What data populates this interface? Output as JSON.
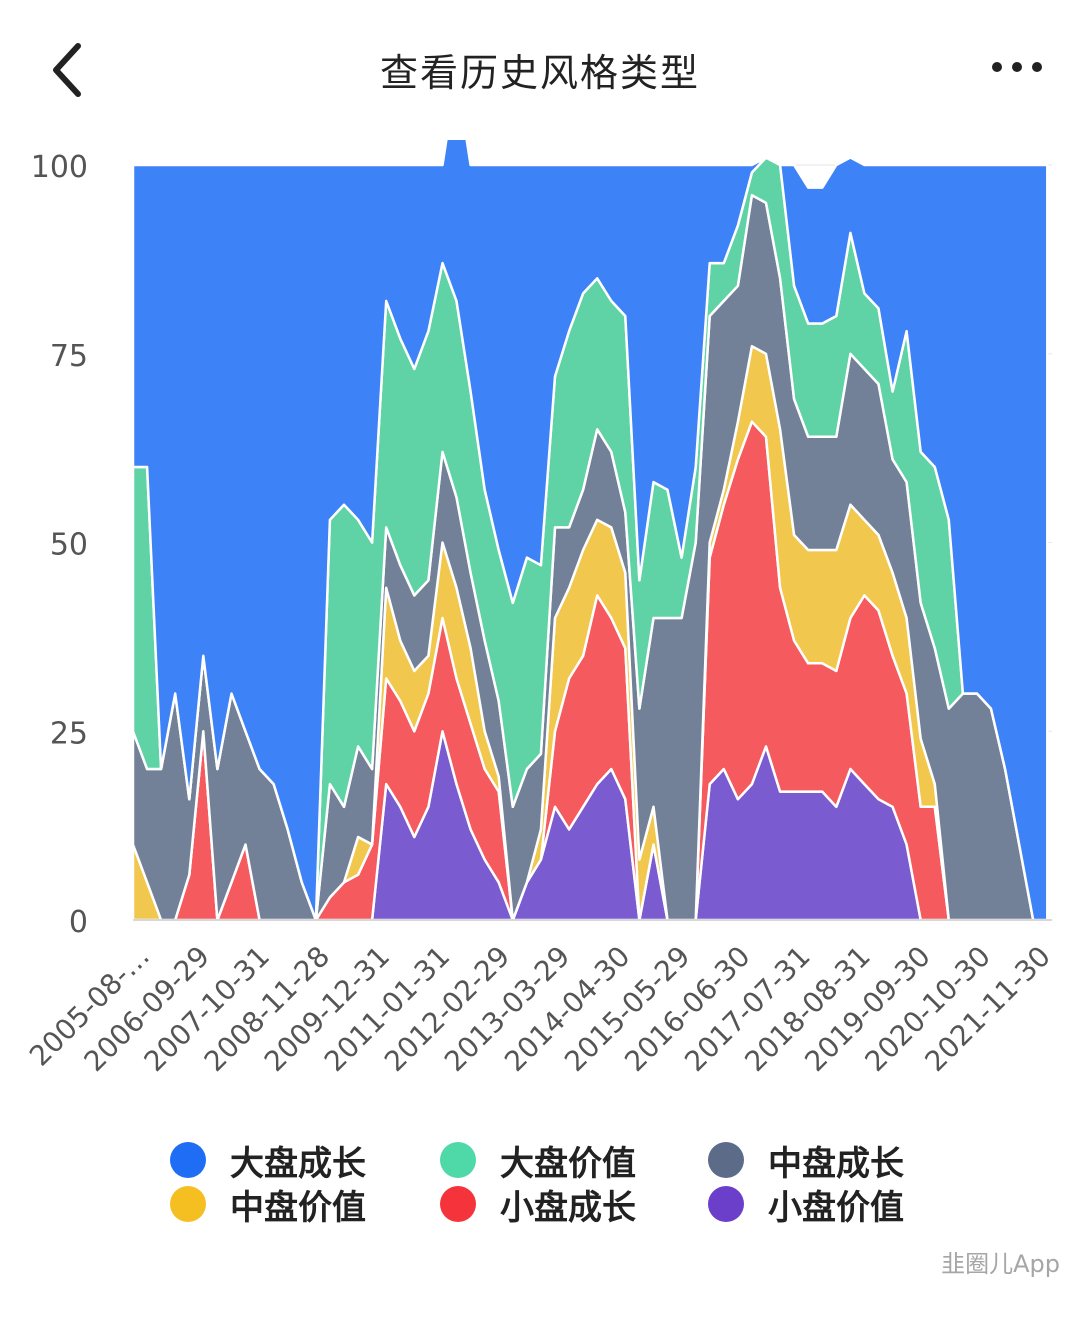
{
  "header": {
    "title": "查看历史风格类型"
  },
  "icons": {
    "back": "chevron-left-icon",
    "more": "more-dots-icon"
  },
  "chart_data": {
    "type": "area",
    "stacked": true,
    "ylim": [
      0,
      100
    ],
    "yticks": [
      "0",
      "25",
      "50",
      "75",
      "100"
    ],
    "x_tick_labels": [
      "2005-08-…",
      "2006-09-29",
      "2007-10-31",
      "2008-11-28",
      "2009-12-31",
      "2011-01-31",
      "2012-02-29",
      "2013-03-29",
      "2014-04-30",
      "2015-05-29",
      "2016-06-30",
      "2017-07-31",
      "2018-08-31",
      "2019-09-30",
      "2020-10-30",
      "2021-11-30"
    ],
    "x_range": [
      "2005-08",
      "2021-12"
    ],
    "grid": true,
    "legend_position": "bottom",
    "x": [
      "2005-08",
      "2005-11",
      "2006-02",
      "2006-05",
      "2006-08",
      "2006-11",
      "2007-02",
      "2007-05",
      "2007-08",
      "2007-11",
      "2008-02",
      "2008-05",
      "2008-08",
      "2008-11",
      "2009-02",
      "2009-05",
      "2009-08",
      "2009-11",
      "2010-02",
      "2010-05",
      "2010-08",
      "2010-11",
      "2011-02",
      "2011-05",
      "2011-08",
      "2011-11",
      "2012-02",
      "2012-05",
      "2012-08",
      "2012-11",
      "2013-02",
      "2013-05",
      "2013-08",
      "2013-11",
      "2014-02",
      "2014-05",
      "2014-08",
      "2014-11",
      "2015-02",
      "2015-05",
      "2015-08",
      "2015-11",
      "2016-02",
      "2016-05",
      "2016-08",
      "2016-11",
      "2017-02",
      "2017-05",
      "2017-08",
      "2017-11",
      "2018-02",
      "2018-05",
      "2018-08",
      "2018-11",
      "2019-02",
      "2019-05",
      "2019-08",
      "2019-11",
      "2020-02",
      "2020-05",
      "2020-08",
      "2020-11",
      "2021-02",
      "2021-05",
      "2021-08",
      "2021-11"
    ],
    "series": [
      {
        "name": "小盘价值",
        "color": "#7b5cd0",
        "values": [
          0,
          0,
          0,
          0,
          0,
          0,
          0,
          0,
          0,
          0,
          0,
          0,
          0,
          0,
          0,
          0,
          0,
          0,
          18,
          15,
          11,
          15,
          25,
          18,
          12,
          8,
          5,
          0,
          5,
          8,
          15,
          12,
          15,
          18,
          20,
          16,
          0,
          10,
          0,
          0,
          0,
          18,
          20,
          16,
          18,
          23,
          17,
          17,
          17,
          17,
          15,
          20,
          18,
          16,
          15,
          10,
          0,
          0,
          0,
          0,
          0,
          0,
          0,
          0,
          0,
          0
        ]
      },
      {
        "name": "小盘成长",
        "color": "#f45a5e",
        "values": [
          0,
          0,
          0,
          0,
          6,
          25,
          0,
          5,
          10,
          0,
          0,
          0,
          0,
          0,
          3,
          5,
          6,
          10,
          14,
          14,
          14,
          15,
          15,
          14,
          14,
          12,
          12,
          0,
          0,
          0,
          10,
          20,
          20,
          25,
          20,
          20,
          0,
          0,
          0,
          0,
          0,
          30,
          35,
          45,
          48,
          41,
          27,
          20,
          17,
          17,
          18,
          20,
          25,
          25,
          20,
          20,
          15,
          15,
          0,
          0,
          0,
          0,
          0,
          0,
          0,
          0
        ]
      },
      {
        "name": "中盘价值",
        "color": "#f2c74d",
        "values": [
          10,
          5,
          0,
          0,
          0,
          0,
          0,
          0,
          0,
          0,
          0,
          0,
          0,
          0,
          0,
          0,
          5,
          0,
          12,
          8,
          8,
          5,
          10,
          12,
          10,
          5,
          2,
          0,
          0,
          4,
          15,
          12,
          14,
          10,
          12,
          10,
          8,
          5,
          0,
          0,
          0,
          2,
          2,
          5,
          10,
          11,
          21,
          14,
          15,
          15,
          16,
          15,
          10,
          10,
          11,
          10,
          9,
          3,
          0,
          0,
          0,
          0,
          0,
          0,
          0,
          0
        ]
      },
      {
        "name": "中盘成长",
        "color": "#728198",
        "values": [
          15,
          15,
          20,
          30,
          10,
          10,
          20,
          25,
          15,
          20,
          18,
          12,
          5,
          0,
          15,
          10,
          12,
          10,
          8,
          10,
          10,
          10,
          12,
          12,
          10,
          12,
          10,
          15,
          15,
          10,
          12,
          8,
          8,
          12,
          10,
          8,
          20,
          25,
          40,
          40,
          50,
          30,
          25,
          18,
          20,
          20,
          20,
          18,
          15,
          15,
          15,
          20,
          20,
          20,
          15,
          18,
          18,
          18,
          28,
          30,
          30,
          28,
          20,
          10,
          0,
          0
        ]
      },
      {
        "name": "大盘价值",
        "color": "#5fd3a6",
        "values": [
          35,
          40,
          0,
          0,
          0,
          0,
          0,
          0,
          0,
          0,
          0,
          0,
          0,
          0,
          35,
          40,
          30,
          30,
          30,
          30,
          30,
          33,
          25,
          26,
          24,
          20,
          20,
          27,
          28,
          25,
          20,
          26,
          26,
          20,
          20,
          26,
          17,
          18,
          17,
          8,
          10,
          7,
          5,
          8,
          3,
          6,
          15,
          15,
          15,
          15,
          16,
          16,
          10,
          10,
          9,
          20,
          20,
          24,
          25,
          0,
          0,
          0,
          0,
          0,
          0,
          0
        ]
      },
      {
        "name": "大盘成长",
        "color": "#3d82f6",
        "values": [
          40,
          40,
          80,
          70,
          84,
          65,
          80,
          70,
          75,
          80,
          82,
          88,
          95,
          100,
          47,
          45,
          47,
          50,
          18,
          23,
          27,
          22,
          13,
          30,
          30,
          43,
          51,
          58,
          52,
          53,
          28,
          22,
          17,
          15,
          18,
          20,
          55,
          42,
          43,
          52,
          40,
          13,
          13,
          8,
          1,
          0,
          0,
          16,
          18,
          18,
          20,
          10,
          17,
          19,
          30,
          22,
          38,
          40,
          47,
          70,
          70,
          72,
          80,
          90,
          100,
          100
        ]
      }
    ]
  },
  "legend": {
    "items": [
      {
        "label": "大盘成长",
        "color": "#1f6df5"
      },
      {
        "label": "大盘价值",
        "color": "#4fd8a8"
      },
      {
        "label": "中盘成长",
        "color": "#5b6b88"
      },
      {
        "label": "中盘价值",
        "color": "#f5bf22"
      },
      {
        "label": "小盘成长",
        "color": "#f5333b"
      },
      {
        "label": "小盘价值",
        "color": "#6b3fc9"
      }
    ]
  },
  "watermark": "韭圈儿App"
}
